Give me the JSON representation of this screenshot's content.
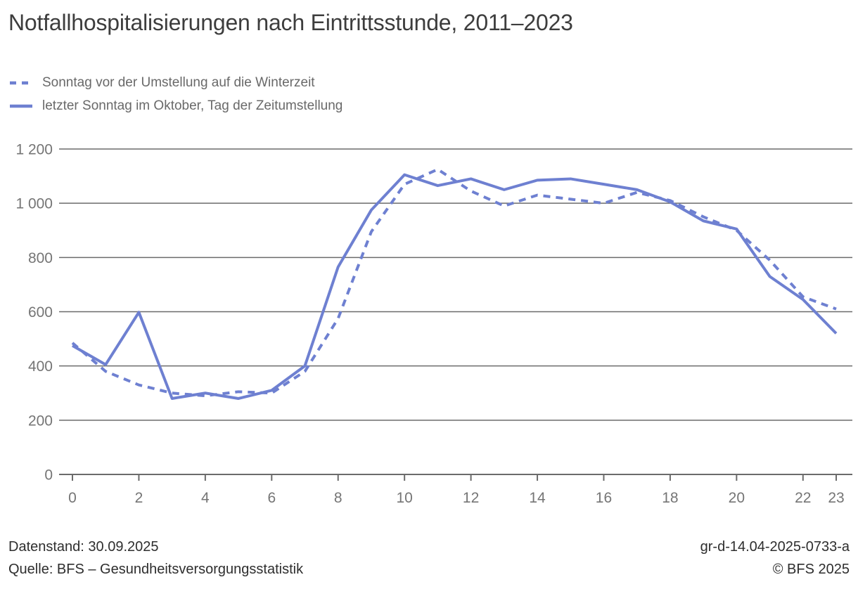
{
  "title": "Notfallhospitalisierungen nach Eintrittsstunde, 2011–2023",
  "legend": [
    {
      "label": "Sonntag vor der Umstellung auf die Winterzeit",
      "style": "dashed"
    },
    {
      "label": "letzter Sonntag im Oktober, Tag der Zeitumstellung",
      "style": "solid"
    }
  ],
  "footer": {
    "left_line1": "Datenstand: 30.09.2025",
    "left_line2": "Quelle: BFS – Gesundheitsversorgungsstatistik",
    "right_line1": "gr-d-14.04-2025-0733-a",
    "right_line2": "© BFS 2025"
  },
  "colors": {
    "series": "#6e80d1",
    "grid": "#6b6b6b",
    "axis_text": "#757575",
    "title_text": "#3d3d3d",
    "legend_text": "#696969",
    "footer_text": "#2e2e2e"
  },
  "chart_data": {
    "type": "line",
    "title": "Notfallhospitalisierungen nach Eintrittsstunde, 2011–2023",
    "xlabel": "",
    "ylabel": "",
    "x": [
      0,
      1,
      2,
      3,
      4,
      5,
      6,
      7,
      8,
      9,
      10,
      11,
      12,
      13,
      14,
      15,
      16,
      17,
      18,
      19,
      20,
      21,
      22,
      23
    ],
    "series": [
      {
        "name": "Sonntag vor der Umstellung auf die Winterzeit",
        "style": "dashed",
        "values": [
          485,
          380,
          330,
          300,
          290,
          305,
          300,
          380,
          575,
          895,
          1070,
          1125,
          1045,
          990,
          1030,
          1015,
          1000,
          1040,
          1010,
          950,
          900,
          790,
          655,
          610
        ]
      },
      {
        "name": "letzter Sonntag im Oktober, Tag der Zeitumstellung",
        "style": "solid",
        "values": [
          475,
          405,
          598,
          280,
          300,
          280,
          310,
          400,
          765,
          975,
          1105,
          1065,
          1090,
          1050,
          1085,
          1090,
          1070,
          1050,
          1005,
          935,
          905,
          730,
          645,
          520
        ]
      }
    ],
    "xticks": [
      0,
      2,
      4,
      6,
      8,
      10,
      12,
      14,
      16,
      18,
      20,
      22,
      23
    ],
    "yticks": [
      0,
      200,
      400,
      600,
      800,
      1000,
      1200
    ],
    "ytick_labels": [
      "0",
      "200",
      "400",
      "600",
      "800",
      "1 000",
      "1 200"
    ],
    "ylim": [
      0,
      1200
    ],
    "xlim": [
      0,
      23
    ],
    "grid": "horizontal",
    "legend_position": "top-left"
  }
}
